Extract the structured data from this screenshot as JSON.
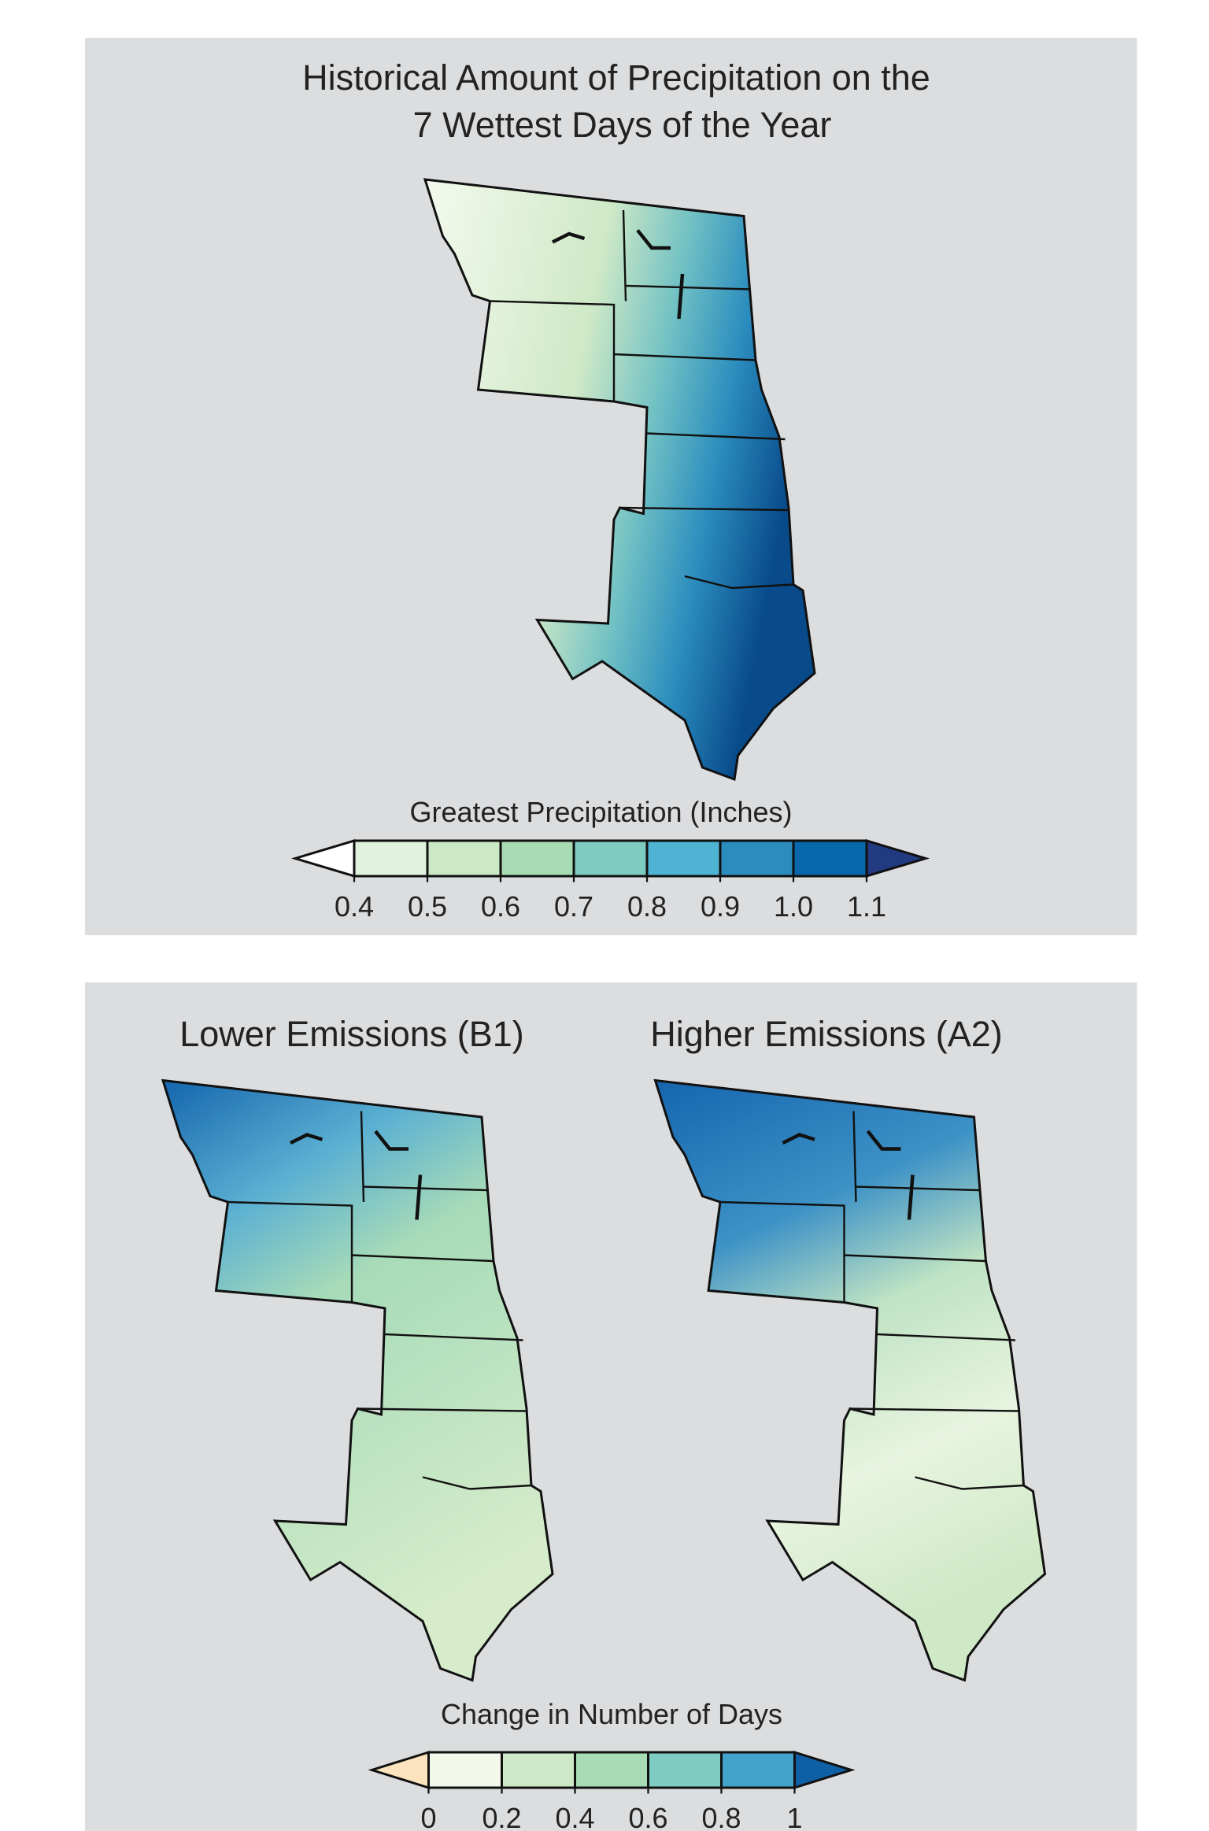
{
  "panels": [
    {
      "title": [
        "Historical Amount of Precipitation on the",
        "7 Wettest Days of the Year"
      ],
      "colorbar": {
        "label": "Greatest Precipitation (Inches)",
        "lim": [
          0.4,
          1.1
        ],
        "ticks": [
          0.4,
          0.5,
          0.6,
          0.7,
          0.8,
          0.9,
          {
            "value": 1,
            "label": "1.0"
          },
          1.1
        ],
        "under_color": "#ffffff",
        "over_color": "#223a80",
        "colors": [
          "#e0f3dc",
          "#cbe9c5",
          "#a8dcb4",
          "#7ecbc1",
          "#4fb3d3",
          "#2b8cbe",
          "#0868ac"
        ]
      }
    },
    {
      "maps": [
        "Lower Emissions (B1)",
        "Higher Emissions (A2)"
      ],
      "colorbar": {
        "label": "Change in Number of Days",
        "lim": [
          0,
          1
        ],
        "ticks": [
          0,
          0.2,
          0.4,
          0.6,
          0.8,
          1
        ],
        "under_color": "#fbe4be",
        "over_color": "#0f5fa6",
        "colors": [
          "#f2f8ea",
          "#cde9c8",
          "#a8dcb5",
          "#7ecbc2",
          "#43a2ca"
        ]
      }
    }
  ]
}
